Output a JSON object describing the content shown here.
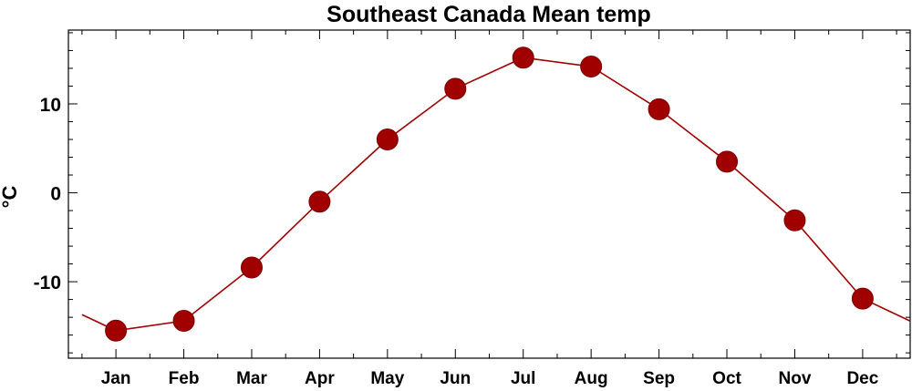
{
  "chart_data": {
    "type": "line",
    "title": "Southeast Canada Mean temp",
    "ylabel": "°C",
    "xlabel": "",
    "categories": [
      "Jan",
      "Feb",
      "Mar",
      "Apr",
      "May",
      "Jun",
      "Jul",
      "Aug",
      "Sep",
      "Oct",
      "Nov",
      "Dec"
    ],
    "series": [
      {
        "values": [
          -15.5,
          -14.4,
          -8.4,
          -1.0,
          6.0,
          11.7,
          15.2,
          14.2,
          9.4,
          3.5,
          -3.1,
          -11.9
        ]
      }
    ],
    "ylim": [
      -18.6,
      18.3
    ],
    "yticks": [
      -10,
      0,
      10
    ],
    "line_color": "#a00000",
    "marker_color": "#a00000",
    "grid": false,
    "wraparound_line": true
  }
}
